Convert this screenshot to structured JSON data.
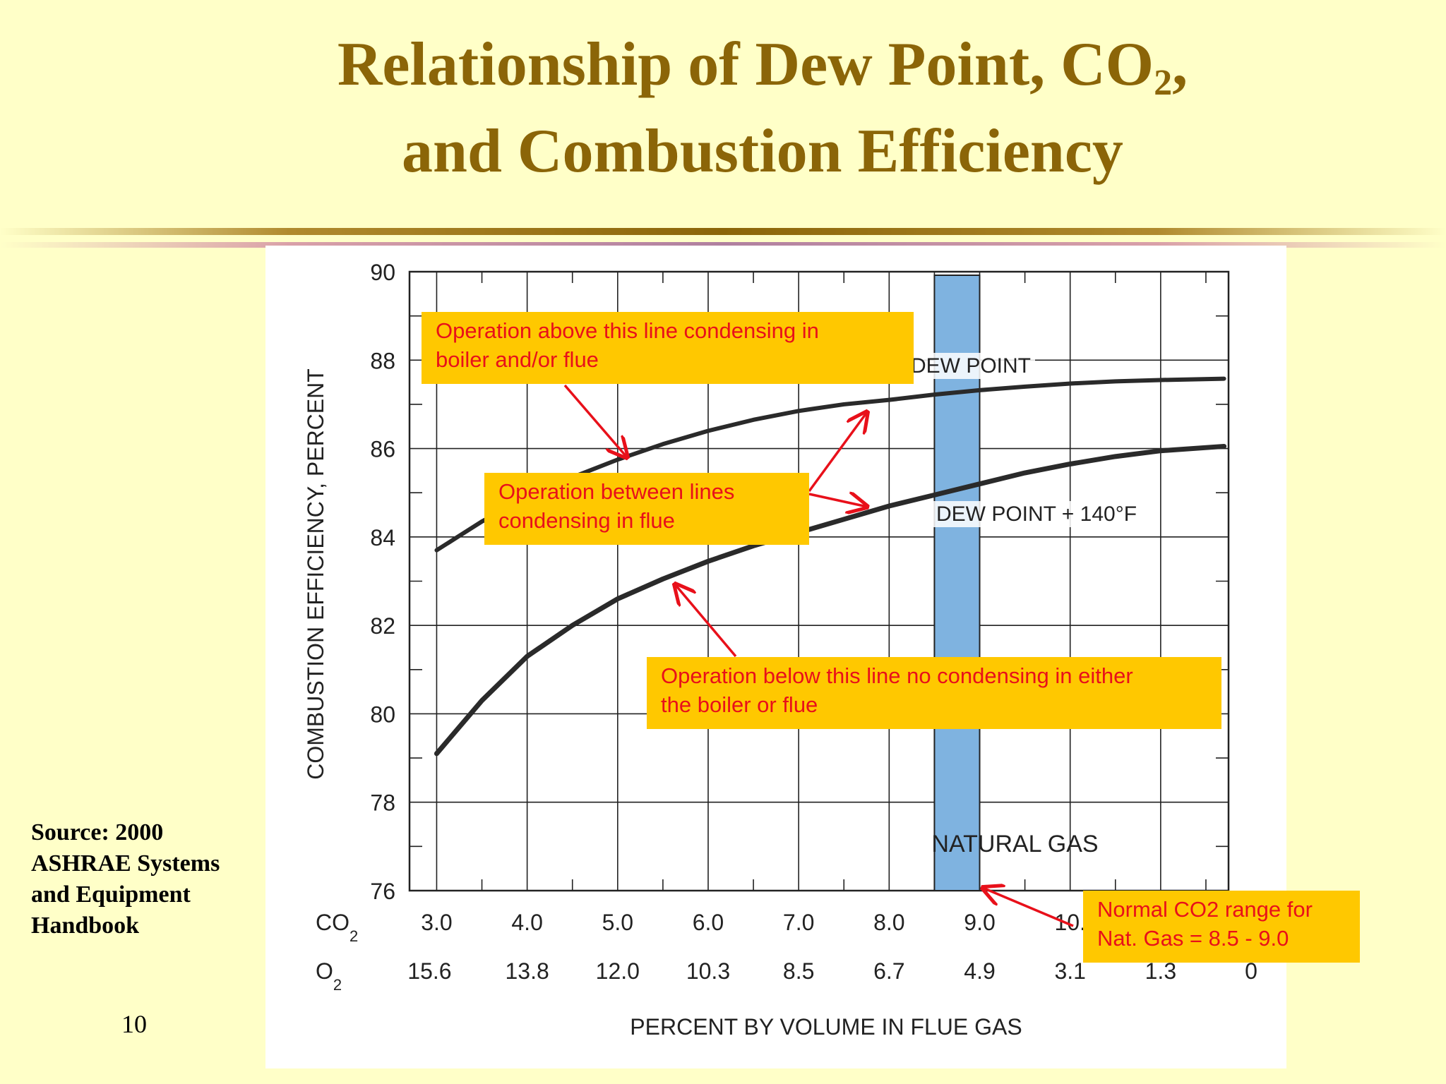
{
  "title": {
    "line1_pre": "Relationship of Dew Point, CO",
    "line1_sub": "2",
    "line1_post": ",",
    "line2": "and Combustion Efficiency"
  },
  "source": "Source: 2000\nASHRAE Systems\nand Equipment\nHandbook",
  "page_number": "10",
  "colors": {
    "background": "#ffffc8",
    "title": "#8b6508",
    "callout_fill": "#ffc800",
    "callout_text": "#e8101a",
    "band": "#7fb3e0",
    "curve": "#2a2a2a"
  },
  "chart_data": {
    "type": "line",
    "ylabel": "COMBUSTION EFFICIENCY,  PERCENT",
    "xlabel": "PERCENT BY VOLUME IN FLUE GAS",
    "ylim": [
      76,
      90
    ],
    "yticks": [
      "76",
      "78",
      "80",
      "82",
      "84",
      "86",
      "88",
      "90"
    ],
    "x_axis_rows": [
      {
        "label": "CO",
        "sub": "2",
        "ticks": [
          "3.0",
          "4.0",
          "5.0",
          "6.0",
          "7.0",
          "8.0",
          "9.0",
          "10.",
          "",
          ""
        ]
      },
      {
        "label": "O",
        "sub": "2",
        "ticks": [
          "15.6",
          "13.8",
          "12.0",
          "10.3",
          "8.5",
          "6.7",
          "4.9",
          "3.1",
          "1.3",
          "0"
        ]
      }
    ],
    "xlim": [
      2.7,
      11.75
    ],
    "grid": true,
    "series": [
      {
        "name": "DEW POINT",
        "x": [
          3.0,
          3.5,
          4.0,
          4.5,
          5.0,
          5.5,
          6.0,
          6.5,
          7.0,
          7.5,
          8.0,
          8.5,
          9.0,
          9.5,
          10.0,
          10.5,
          11.0,
          11.7
        ],
        "y": [
          83.7,
          84.35,
          84.9,
          85.35,
          85.75,
          86.1,
          86.4,
          86.65,
          86.85,
          87.0,
          87.1,
          87.22,
          87.32,
          87.4,
          87.47,
          87.52,
          87.55,
          87.58
        ]
      },
      {
        "name": "DEW POINT + 140°F",
        "x": [
          3.0,
          3.5,
          4.0,
          4.5,
          5.0,
          5.5,
          6.0,
          6.5,
          7.0,
          7.5,
          8.0,
          8.5,
          9.0,
          9.5,
          10.0,
          10.5,
          11.0,
          11.7
        ],
        "y": [
          79.1,
          80.3,
          81.3,
          82.0,
          82.6,
          83.05,
          83.45,
          83.8,
          84.1,
          84.4,
          84.7,
          84.95,
          85.2,
          85.45,
          85.65,
          85.82,
          85.95,
          86.05
        ]
      }
    ],
    "band": {
      "label": "NATURAL GAS",
      "x_range": [
        8.5,
        9.0
      ]
    },
    "annotations": [
      {
        "id": "above",
        "text": [
          "Operation above this line condensing in",
          "boiler and/or flue"
        ]
      },
      {
        "id": "between",
        "text": [
          "Operation between lines",
          "condensing in flue"
        ]
      },
      {
        "id": "below",
        "text": [
          "Operation below this line no condensing in either",
          "the boiler or flue"
        ]
      },
      {
        "id": "normal",
        "text": [
          "Normal CO2 range for",
          "Nat. Gas = 8.5 - 9.0"
        ]
      }
    ]
  }
}
